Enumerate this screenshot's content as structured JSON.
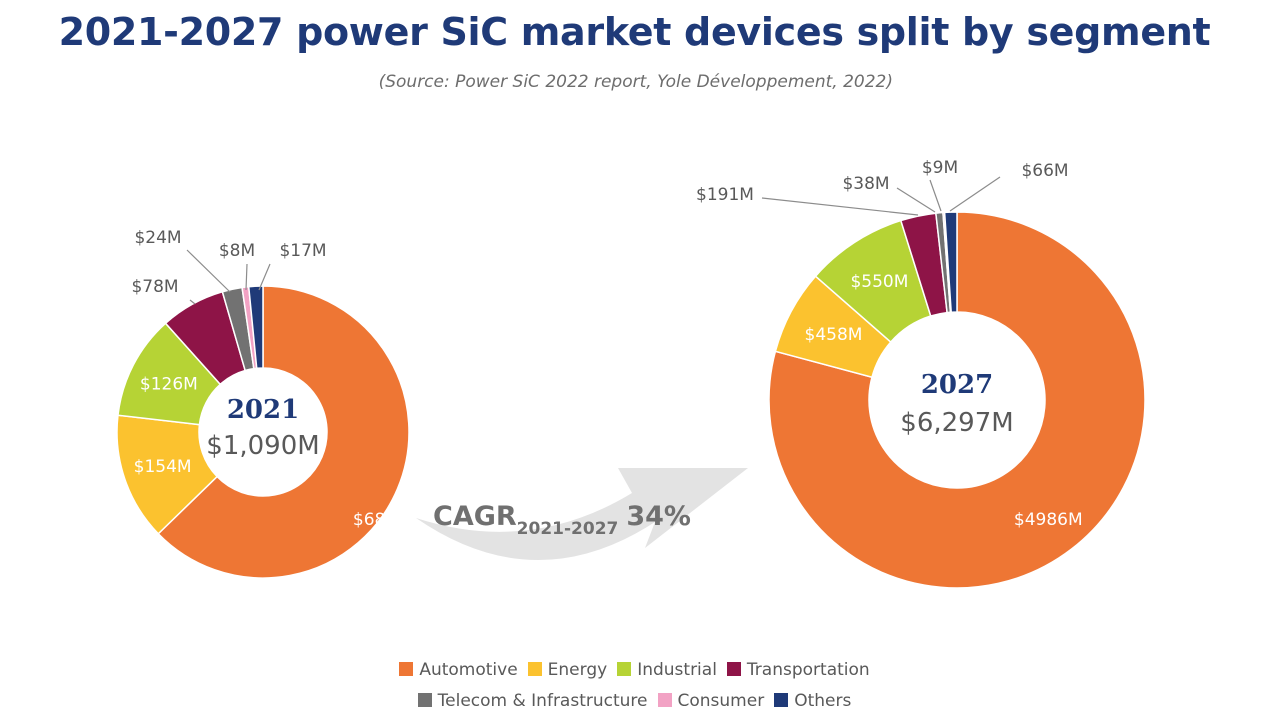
{
  "header": {
    "title": "2021-2027 power SiC market devices split by segment",
    "subtitle": "(Source: Power SiC 2022 report, Yole Développement, 2022)"
  },
  "cagr": {
    "label": "CAGR",
    "period": "2021-2027",
    "value": "34%"
  },
  "colors": {
    "Automotive": "#ee7634",
    "Energy": "#fbc22f",
    "Industrial": "#b6d335",
    "Transportation": "#8e1447",
    "Telecom & Infrastructure": "#727272",
    "Consumer": "#f2a2c4",
    "Others": "#1f3a78"
  },
  "legend": {
    "row1": [
      "Automotive",
      "Energy",
      "Industrial",
      "Transportation"
    ],
    "row2": [
      "Telecom & Infrastructure",
      "Consumer",
      "Others"
    ]
  },
  "chart_data": [
    {
      "type": "pie",
      "center_title": "2021",
      "center_value": "$1,090M",
      "categories": [
        "Automotive",
        "Energy",
        "Industrial",
        "Transportation",
        "Telecom & Infrastructure",
        "Consumer",
        "Others"
      ],
      "values": [
        685,
        154,
        126,
        78,
        24,
        8,
        17
      ],
      "labels": [
        "$685M",
        "$154M",
        "$126M",
        "$78M",
        "$24M",
        "$8M",
        "$17M"
      ],
      "unit": "$M"
    },
    {
      "type": "pie",
      "center_title": "2027",
      "center_value": "$6,297M",
      "categories": [
        "Automotive",
        "Energy",
        "Industrial",
        "Transportation",
        "Telecom & Infrastructure",
        "Consumer",
        "Others"
      ],
      "values": [
        4986,
        458,
        550,
        191,
        38,
        9,
        66
      ],
      "labels": [
        "$4986M",
        "$458M",
        "$550M",
        "$191M",
        "$38M",
        "$9M",
        "$66M"
      ],
      "unit": "$M"
    }
  ]
}
